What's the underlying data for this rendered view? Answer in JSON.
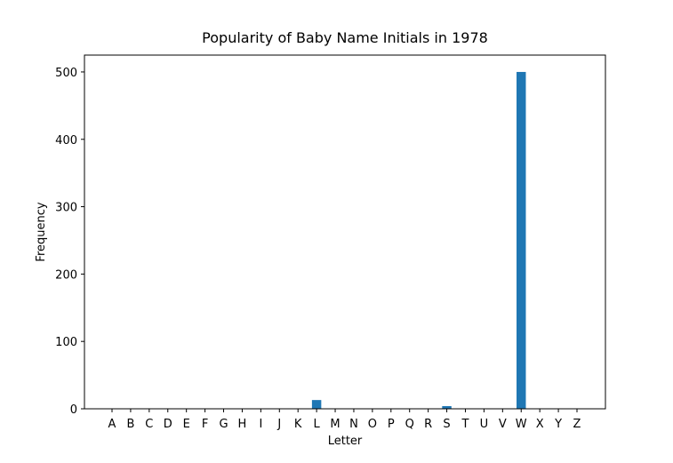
{
  "chart_data": {
    "type": "bar",
    "title": "Popularity of Baby Name Initials in 1978",
    "x_label": "Letter",
    "y_label": "Frequency",
    "categories": [
      "A",
      "B",
      "C",
      "D",
      "E",
      "F",
      "G",
      "H",
      "I",
      "J",
      "K",
      "L",
      "M",
      "N",
      "O",
      "P",
      "Q",
      "R",
      "S",
      "T",
      "U",
      "V",
      "W",
      "X",
      "Y",
      "Z"
    ],
    "values": [
      0,
      0,
      0,
      0,
      0,
      0,
      0,
      0,
      0,
      0,
      0,
      13,
      0,
      0,
      0,
      0,
      0,
      0,
      4,
      0,
      0,
      0,
      500,
      0,
      0,
      0
    ],
    "color": "#1f77b4",
    "ylim": [
      0,
      525
    ],
    "yticks": [
      0,
      100,
      200,
      300,
      400,
      500
    ],
    "grid": false
  }
}
